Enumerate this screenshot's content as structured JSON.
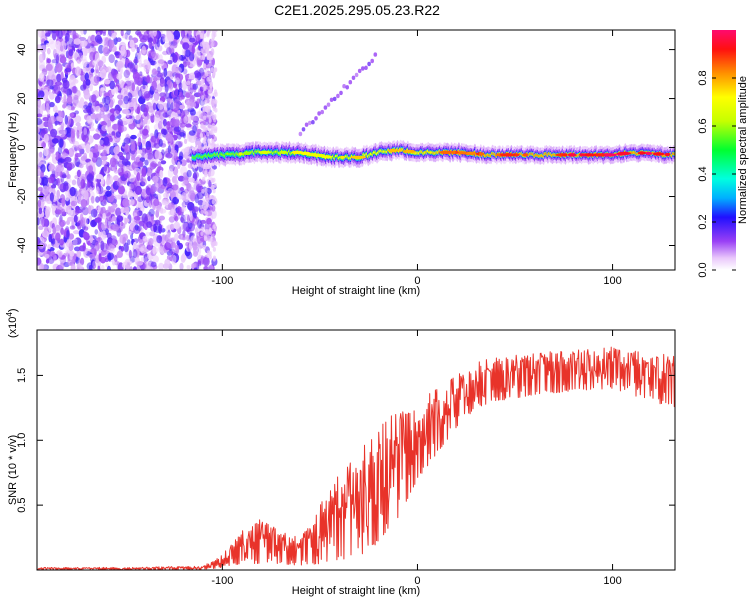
{
  "figure": {
    "title": "C2E1.2025.295.05.23.R22"
  },
  "chart_data": [
    {
      "type": "heatmap",
      "title": "C2E1.2025.295.05.23.R22",
      "xlabel": "Height of straight line (km)",
      "ylabel": "Frequency (Hz)",
      "xlim": [
        -195,
        132
      ],
      "ylim": [
        -50,
        48
      ],
      "x_ticks": [
        -100,
        0,
        100
      ],
      "x_tick_labels": [
        "-100",
        "0",
        "100"
      ],
      "y_ticks": [
        -40,
        -20,
        0,
        20,
        40
      ],
      "y_tick_labels": [
        "-40",
        "-20",
        "0",
        "20",
        "40"
      ],
      "noise_region_x": [
        -195,
        -108
      ],
      "signal_start_x": -115,
      "ridge": {
        "x": [
          -115,
          -100,
          -80,
          -60,
          -45,
          -30,
          -20,
          -10,
          0,
          10,
          20,
          40,
          60,
          80,
          100,
          110,
          132
        ],
        "freq": [
          -4,
          -3,
          -2,
          -2,
          -4,
          -4,
          -2,
          -1,
          -2,
          -2,
          -2,
          -3,
          -3,
          -3,
          -3,
          -2,
          -3
        ]
      },
      "colorbar": {
        "label": "Normalized spectral amplitude",
        "range": [
          0,
          1
        ],
        "ticks": [
          0.0,
          0.2,
          0.4,
          0.6,
          0.8
        ],
        "tick_labels": [
          "0.0",
          "0.2",
          "0.4",
          "0.6",
          "0.8"
        ]
      }
    },
    {
      "type": "line",
      "xlabel": "Height of straight line (km)",
      "ylabel": "SNR (10 * v/v)",
      "y_scale_label": "(x10",
      "y_scale_exponent": "4",
      "xlim": [
        -195,
        132
      ],
      "ylim": [
        0,
        1.85
      ],
      "x_ticks": [
        -100,
        0,
        100
      ],
      "x_tick_labels": [
        "-100",
        "0",
        "100"
      ],
      "y_ticks": [
        0.5,
        1.0,
        1.5
      ],
      "y_tick_labels": [
        "0.5",
        "1.0",
        "1.5"
      ],
      "series": [
        {
          "name": "SNR",
          "color": "#e8332a",
          "x": [
            -195,
            -150,
            -110,
            -100,
            -90,
            -80,
            -70,
            -60,
            -50,
            -40,
            -30,
            -20,
            -10,
            0,
            10,
            20,
            30,
            40,
            60,
            80,
            100,
            120,
            132
          ],
          "upper": [
            0.02,
            0.02,
            0.03,
            0.12,
            0.3,
            0.4,
            0.3,
            0.25,
            0.5,
            0.75,
            0.95,
            1.1,
            1.25,
            1.3,
            1.4,
            1.5,
            1.6,
            1.65,
            1.68,
            1.7,
            1.72,
            1.68,
            1.65
          ],
          "lower": [
            0.0,
            0.0,
            0.0,
            0.02,
            0.05,
            0.05,
            0.05,
            0.03,
            0.05,
            0.08,
            0.1,
            0.2,
            0.4,
            0.7,
            0.9,
            1.1,
            1.25,
            1.3,
            1.35,
            1.38,
            1.4,
            1.3,
            1.25
          ]
        }
      ]
    }
  ]
}
